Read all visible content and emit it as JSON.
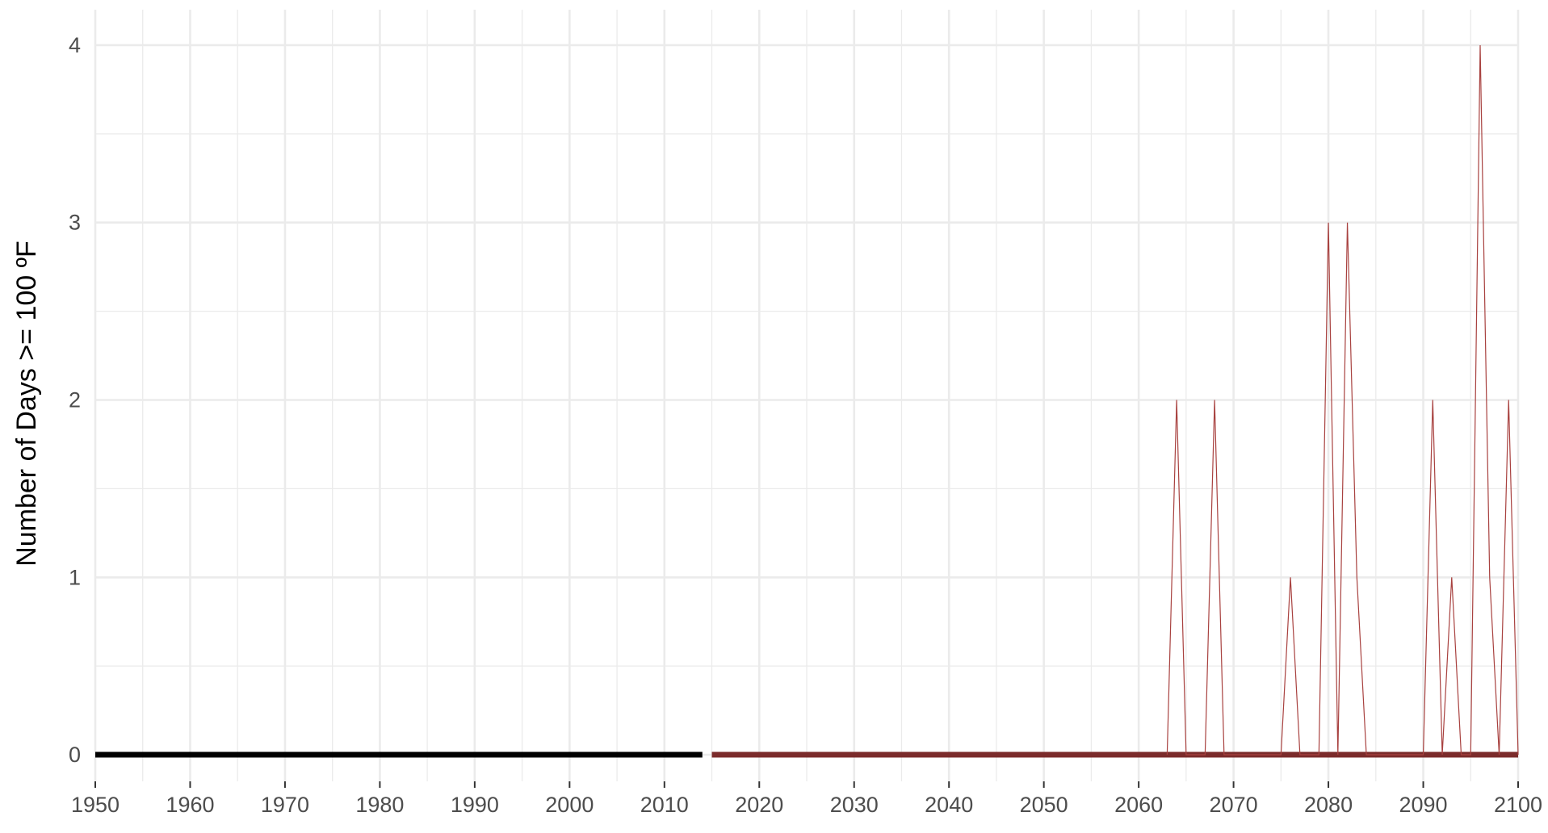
{
  "chart_data": {
    "type": "line",
    "title": "",
    "xlabel": "",
    "ylabel": "Number of Days >= 100 ºF",
    "xlim": [
      1950,
      2100
    ],
    "ylim": [
      0,
      4
    ],
    "x_ticks": [
      1950,
      1960,
      1970,
      1980,
      1990,
      2000,
      2010,
      2020,
      2030,
      2040,
      2050,
      2060,
      2070,
      2080,
      2090,
      2100
    ],
    "y_ticks": [
      0,
      1,
      2,
      3,
      4
    ],
    "grid": true,
    "legend": "none",
    "series": [
      {
        "color": "#000000",
        "style": "thick",
        "x": [
          1950,
          2014
        ],
        "y": [
          0,
          0
        ]
      },
      {
        "color": "#7b2b2b",
        "style": "thick",
        "x": [
          2015,
          2100
        ],
        "y": [
          0,
          0
        ]
      },
      {
        "color": "#a8413f",
        "style": "thin",
        "x": [
          2063,
          2064,
          2065,
          2067,
          2068,
          2069,
          2075,
          2076,
          2077,
          2079,
          2080,
          2081,
          2082,
          2083,
          2084,
          2090,
          2091,
          2092,
          2093,
          2094,
          2095,
          2096,
          2097,
          2098,
          2099,
          2100
        ],
        "y": [
          0,
          2,
          0,
          0,
          2,
          0,
          0,
          1,
          0,
          0,
          3,
          0,
          3,
          1,
          0,
          0,
          2,
          0,
          1,
          0,
          0,
          4,
          1,
          0,
          2,
          0
        ]
      }
    ]
  }
}
